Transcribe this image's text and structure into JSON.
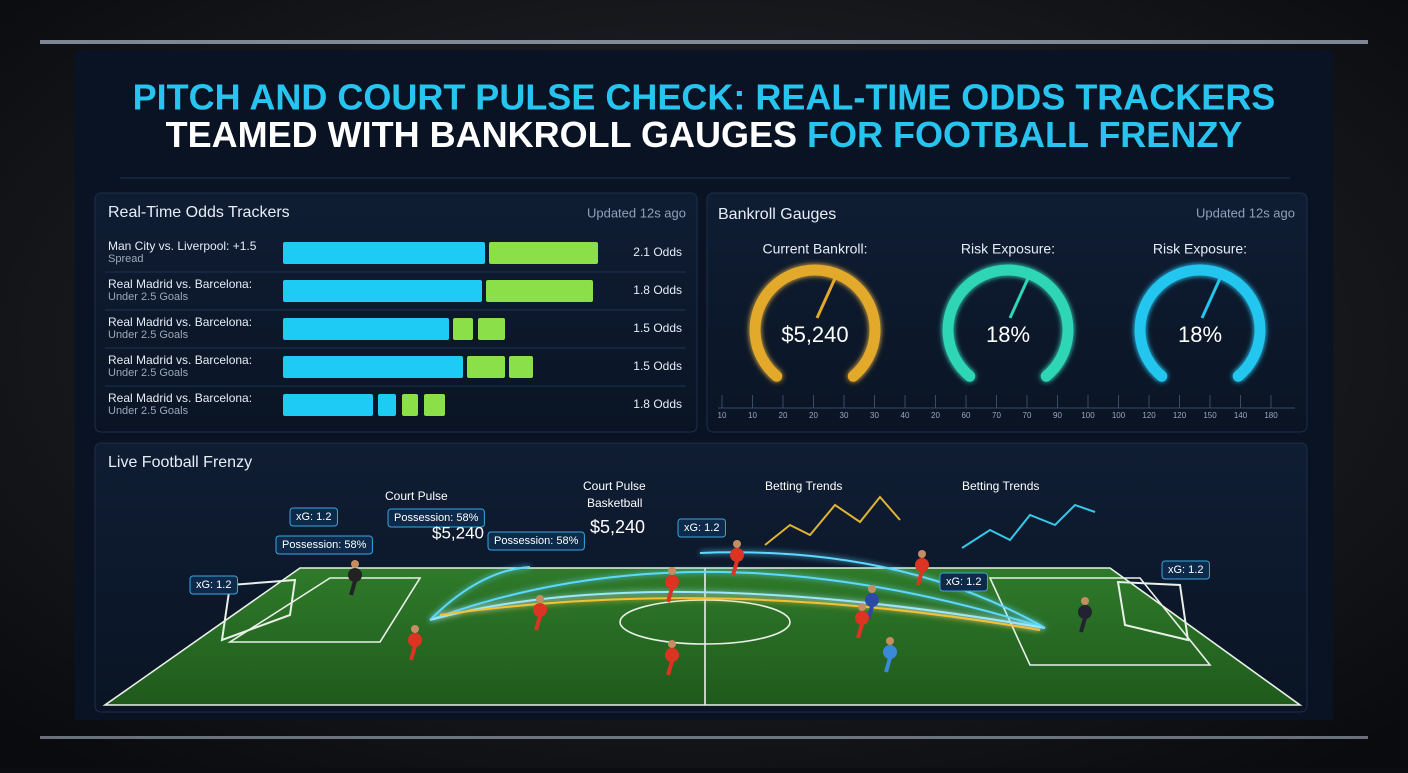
{
  "header": {
    "title_line1": "PITCH AND COURT PULSE CHECK: REAL-TIME ODDS TRACKERS",
    "title_line2_white": "TEAMED WITH BANKROLL GAUGES",
    "title_line2_blue": "FOR FOOTBALL FRENZY"
  },
  "odds_panel": {
    "title": "Real-Time Odds Trackers",
    "updated": "Updated 12s ago",
    "rows": [
      {
        "match": "Man City vs. Liverpool: +1.5",
        "market": "Spread",
        "odds": "2.1 Odds"
      },
      {
        "match": "Real Madrid vs. Barcelona:",
        "market": "Under 2.5 Goals",
        "odds": "1.8 Odds"
      },
      {
        "match": "Real Madrid vs. Barcelona:",
        "market": "Under 2.5 Goals",
        "odds": "1.5 Odds"
      },
      {
        "match": "Real Madrid vs. Barcelona:",
        "market": "Under 2.5 Goals",
        "odds": "1.5 Odds"
      },
      {
        "match": "Real Madrid vs. Barcelona:",
        "market": "Under 2.5 Goals",
        "odds": "1.8 Odds"
      }
    ]
  },
  "bankroll_panel": {
    "title": "Bankroll Gauges",
    "updated": "Updated 12s ago",
    "gauges": [
      {
        "label": "Current Bankroll:",
        "value": "$5,240"
      },
      {
        "label": "Risk Exposure:",
        "value": "18%"
      },
      {
        "label": "Risk Exposure:",
        "value": "18%"
      }
    ],
    "scale_labels": [
      "10",
      "10",
      "20",
      "20",
      "30",
      "30",
      "40",
      "20",
      "60",
      "70",
      "70",
      "90",
      "100",
      "100",
      "120",
      "120",
      "150",
      "140",
      "180"
    ]
  },
  "football_panel": {
    "title": "Live Football Frenzy",
    "callouts": [
      "Court Pulse",
      "Possession: 58%",
      "$5,240",
      "Court Pulse",
      "Basketball",
      "$5,240",
      "Possession: 58%",
      "Possession: 58%",
      "xG: 1.2",
      "xG: 1.2",
      "xG: 1.2",
      "xG: 1.2",
      "xG: 1.2",
      "Betting Trends",
      "Betting Trends"
    ]
  }
}
